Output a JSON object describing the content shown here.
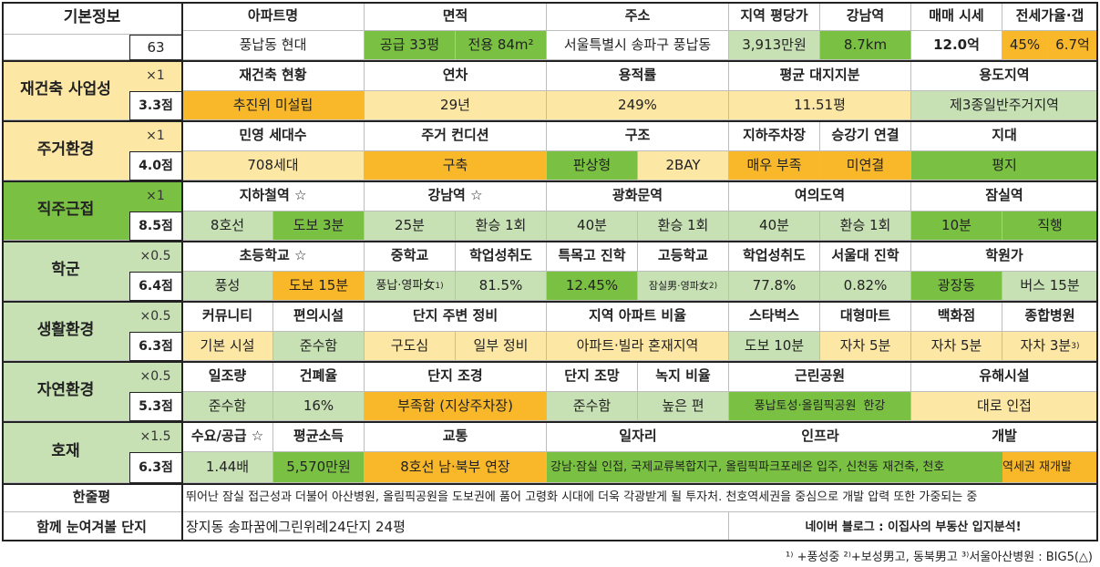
{
  "basic": {
    "label": "기본정보",
    "id": "63",
    "headers": [
      "아파트명",
      "면적",
      "주소",
      "지역 평당가",
      "강남역",
      "매매 시세",
      "전세가율·갭"
    ],
    "name": "풍납동 현대",
    "area_supply": "공급 33평",
    "area_exclusive": "전용 84m²",
    "address": "서울특별시 송파구 풍납동",
    "price_per_pyeong": "3,913만원",
    "gangnam_distance": "8.7km",
    "sale_price": "12.0억",
    "jeonse_rate": "45%",
    "jeonse_gap": "6.7억"
  },
  "rebuild": {
    "label": "재건축 사업성",
    "mult": "×1",
    "score": "3.3점",
    "headers": [
      "재건축 현황",
      "연차",
      "용적률",
      "평균 대지지분",
      "용도지역"
    ],
    "status": "추진위 미설립",
    "age": "29년",
    "far": "249%",
    "land_share": "11.51평",
    "zoning": "제3종일반주거지역"
  },
  "living": {
    "label": "주거환경",
    "mult": "×1",
    "score": "4.0점",
    "headers": [
      "민영 세대수",
      "주거 컨디션",
      "구조",
      "지하주차장",
      "승강기 연결",
      "지대"
    ],
    "households": "708세대",
    "condition": "구축",
    "structure_type": "판상형",
    "bay": "2BAY",
    "parking": "매우 부족",
    "elevator": "미연결",
    "terrain": "평지"
  },
  "commute": {
    "label": "직주근접",
    "mult": "×1",
    "score": "8.5점",
    "headers": [
      "지하철역 ☆",
      "강남역 ☆",
      "광화문역",
      "여의도역",
      "잠실역"
    ],
    "station": "8호선",
    "station_walk": "도보 3분",
    "gangnam_time": "25분",
    "gangnam_transfer": "환승 1회",
    "gwanghwamun_time": "40분",
    "gwanghwamun_transfer": "환승 1회",
    "yeouido_time": "40분",
    "yeouido_transfer": "환승 1회",
    "jamsil_time": "10분",
    "jamsil_transfer": "직행"
  },
  "school": {
    "label": "학군",
    "mult": "×0.5",
    "score": "6.4점",
    "headers": [
      "초등학교 ☆",
      "중학교",
      "학업성취도",
      "특목고 진학",
      "고등학교",
      "학업성취도",
      "서울대 진학",
      "학원가"
    ],
    "elementary": "풍성",
    "elementary_walk": "도보 15분",
    "middle": "풍납·영파女",
    "middle_sup": "1)",
    "middle_score": "81.5%",
    "special_high": "12.45%",
    "high": "잠실男·영파女",
    "high_sup": "2)",
    "high_score": "77.8%",
    "snu": "0.82%",
    "academy": "광장동",
    "academy_time": "버스 15분"
  },
  "life": {
    "label": "생활환경",
    "mult": "×0.5",
    "score": "6.3점",
    "headers": [
      "커뮤니티",
      "편의시설",
      "단지 주변 정비",
      "지역 아파트 비율",
      "스타벅스",
      "대형마트",
      "백화점",
      "종합병원"
    ],
    "community": "기본 시설",
    "convenience": "준수함",
    "surroundings_a": "구도심",
    "surroundings_b": "일부 정비",
    "apt_ratio": "아파트·빌라 혼재지역",
    "starbucks": "도보 10분",
    "mart": "자차 5분",
    "department": "자차 5분",
    "hospital": "자차 3분",
    "hospital_sup": "3)"
  },
  "nature": {
    "label": "자연환경",
    "mult": "×0.5",
    "score": "5.3점",
    "headers": [
      "일조량",
      "건폐율",
      "단지 조경",
      "단지 조망",
      "녹지 비율",
      "근린공원",
      "유해시설"
    ],
    "sunlight": "준수함",
    "coverage": "16%",
    "landscape": "부족함 (지상주차장)",
    "view": "준수함",
    "green_ratio": "높은 편",
    "parks": "풍납토성·올림픽공원",
    "parks2": "한강",
    "hazard": "대로 인접"
  },
  "dev": {
    "label": "호재",
    "mult": "×1.5",
    "score": "6.3점",
    "headers": [
      "수요/공급 ☆",
      "평균소득",
      "교통",
      "일자리",
      "인프라",
      "개발"
    ],
    "supply_ratio": "1.44배",
    "income": "5,570만원",
    "transport": "8호선 남·북부 연장",
    "jobs_infra": "강남·잠실 인접, 국제교류복합지구, 올림픽파크포레온 입주, 신천동 재건축, 천호",
    "development": "역세권 재개발"
  },
  "summary": {
    "label": "한줄평",
    "text": "뛰어난 잠실 접근성과 더불어 아산병원, 올림픽공원을 도보권에 품어 고령화 시대에 더욱 각광받게 될 투자처. 천호역세권을 중심으로 개발 압력 또한 가중되는 중"
  },
  "related": {
    "label": "함께 눈여겨볼 단지",
    "text": "장지동 송파꿈에그린위례24단지 24평",
    "blog": "네이버 블로그 : 이집사의 부동산 입지분석!"
  },
  "footnote": "+풍성중 ²⁾+보성男고, 동북男고 ³⁾서울아산병원 : BIG5(△)",
  "footnote_mark": "¹⁾"
}
